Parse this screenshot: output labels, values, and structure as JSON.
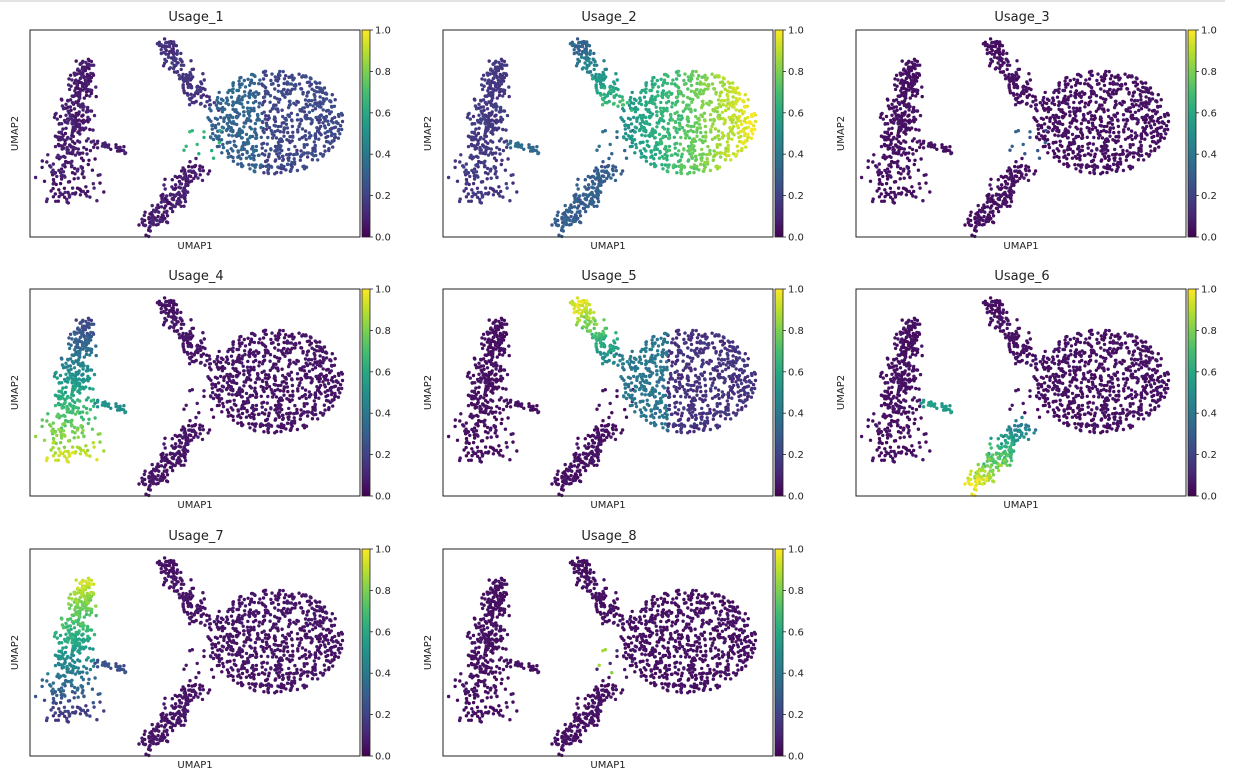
{
  "figure": {
    "xlabel": "UMAP1",
    "ylabel": "UMAP2",
    "colormap": "viridis",
    "colorbar_ticks": [
      "0.0",
      "0.2",
      "0.4",
      "0.6",
      "0.8",
      "1.0"
    ]
  },
  "chart_data": [
    {
      "type": "scatter",
      "title": "Usage_1",
      "xlabel": "UMAP1",
      "ylabel": "UMAP2",
      "color_range": [
        0,
        1
      ],
      "highlight": [
        {
          "cluster": "right_blob",
          "value": 0.28
        },
        {
          "cluster": "upper_arm",
          "value": 0.18
        },
        {
          "cluster": "bridge",
          "value": 0.72
        }
      ]
    },
    {
      "type": "scatter",
      "title": "Usage_2",
      "xlabel": "UMAP1",
      "ylabel": "UMAP2",
      "color_range": [
        0,
        1
      ],
      "highlight": [
        {
          "cluster": "right_blob",
          "value": 0.85
        },
        {
          "cluster": "upper_arm",
          "value": 0.35
        },
        {
          "cluster": "lower_tail",
          "value": 0.3
        },
        {
          "cluster": "left_cluster",
          "value": 0.18
        }
      ]
    },
    {
      "type": "scatter",
      "title": "Usage_3",
      "xlabel": "UMAP1",
      "ylabel": "UMAP2",
      "color_range": [
        0,
        1
      ],
      "highlight": [
        {
          "cluster": "bridge",
          "value": 0.3
        }
      ]
    },
    {
      "type": "scatter",
      "title": "Usage_4",
      "xlabel": "UMAP1",
      "ylabel": "UMAP2",
      "color_range": [
        0,
        1
      ],
      "highlight": [
        {
          "cluster": "left_cluster_bottom",
          "value": 0.85
        },
        {
          "cluster": "left_cluster_top",
          "value": 0.3
        },
        {
          "cluster": "left_branch",
          "value": 0.45
        }
      ]
    },
    {
      "type": "scatter",
      "title": "Usage_5",
      "xlabel": "UMAP1",
      "ylabel": "UMAP2",
      "color_range": [
        0,
        1
      ],
      "highlight": [
        {
          "cluster": "upper_arm_top",
          "value": 0.9
        },
        {
          "cluster": "upper_arm",
          "value": 0.5
        },
        {
          "cluster": "right_blob_left",
          "value": 0.3
        }
      ]
    },
    {
      "type": "scatter",
      "title": "Usage_6",
      "xlabel": "UMAP1",
      "ylabel": "UMAP2",
      "color_range": [
        0,
        1
      ],
      "highlight": [
        {
          "cluster": "lower_tail_bottom",
          "value": 0.9
        },
        {
          "cluster": "lower_tail",
          "value": 0.55
        },
        {
          "cluster": "left_branch",
          "value": 0.5
        }
      ]
    },
    {
      "type": "scatter",
      "title": "Usage_7",
      "xlabel": "UMAP1",
      "ylabel": "UMAP2",
      "color_range": [
        0,
        1
      ],
      "highlight": [
        {
          "cluster": "left_cluster_top",
          "value": 0.85
        },
        {
          "cluster": "left_cluster_mid",
          "value": 0.4
        },
        {
          "cluster": "left_cluster",
          "value": 0.15
        }
      ]
    },
    {
      "type": "scatter",
      "title": "Usage_8",
      "xlabel": "UMAP1",
      "ylabel": "UMAP2",
      "color_range": [
        0,
        1
      ],
      "highlight": [
        {
          "cluster": "bridge",
          "value": 0.8
        }
      ]
    }
  ]
}
